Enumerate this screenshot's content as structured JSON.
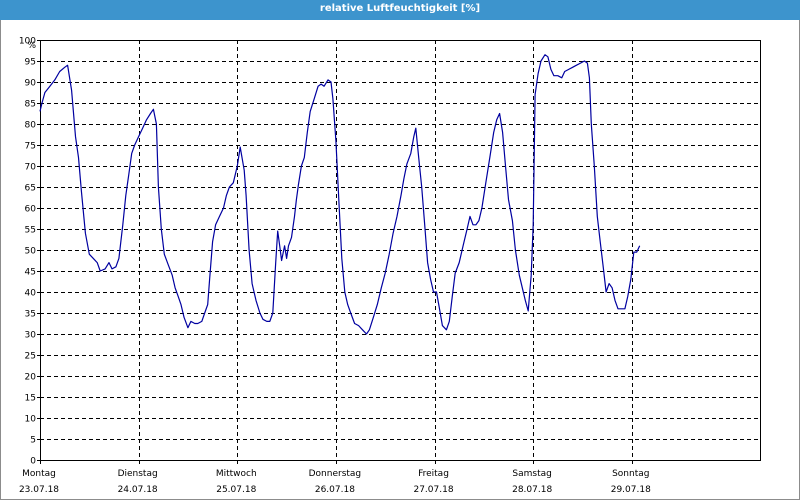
{
  "chart_data": {
    "type": "line",
    "title": "relative Luftfeuchtigkeit [%]",
    "ylabel": "%",
    "ylim": [
      0,
      100
    ],
    "yticks": [
      0,
      5,
      10,
      15,
      20,
      25,
      30,
      35,
      40,
      45,
      50,
      55,
      60,
      65,
      70,
      75,
      80,
      85,
      90,
      95,
      100
    ],
    "xlim": [
      0,
      7.3
    ],
    "grid": true,
    "legend": "none",
    "x_labels": [
      {
        "x": 0,
        "day": "Montag",
        "date": "23.07.18"
      },
      {
        "x": 1,
        "day": "Dienstag",
        "date": "24.07.18"
      },
      {
        "x": 2,
        "day": "Mittwoch",
        "date": "25.07.18"
      },
      {
        "x": 3,
        "day": "Donnerstag",
        "date": "26.07.18"
      },
      {
        "x": 4,
        "day": "Freitag",
        "date": "27.07.18"
      },
      {
        "x": 5,
        "day": "Samstag",
        "date": "28.07.18"
      },
      {
        "x": 6,
        "day": "Sonntag",
        "date": "29.07.18"
      }
    ],
    "series": [
      {
        "color": "#0000a0",
        "points": [
          [
            0.0,
            83
          ],
          [
            0.02,
            85
          ],
          [
            0.05,
            87.5
          ],
          [
            0.1,
            89
          ],
          [
            0.15,
            90.5
          ],
          [
            0.2,
            92.5
          ],
          [
            0.25,
            93.5
          ],
          [
            0.28,
            94
          ],
          [
            0.32,
            88
          ],
          [
            0.36,
            77
          ],
          [
            0.39,
            72
          ],
          [
            0.42,
            64
          ],
          [
            0.46,
            54
          ],
          [
            0.5,
            49
          ],
          [
            0.54,
            48
          ],
          [
            0.58,
            47
          ],
          [
            0.61,
            45
          ],
          [
            0.66,
            45.5
          ],
          [
            0.7,
            47
          ],
          [
            0.73,
            45.5
          ],
          [
            0.77,
            46
          ],
          [
            0.8,
            48
          ],
          [
            0.84,
            56
          ],
          [
            0.87,
            63
          ],
          [
            0.9,
            68
          ],
          [
            0.93,
            73
          ],
          [
            0.96,
            75
          ],
          [
            1.0,
            77
          ],
          [
            1.04,
            79
          ],
          [
            1.08,
            81
          ],
          [
            1.12,
            82.5
          ],
          [
            1.15,
            83.5
          ],
          [
            1.18,
            80
          ],
          [
            1.2,
            65
          ],
          [
            1.23,
            55
          ],
          [
            1.26,
            49
          ],
          [
            1.3,
            46.5
          ],
          [
            1.34,
            44
          ],
          [
            1.37,
            41
          ],
          [
            1.4,
            39
          ],
          [
            1.43,
            37
          ],
          [
            1.46,
            34
          ],
          [
            1.5,
            31.5
          ],
          [
            1.53,
            33
          ],
          [
            1.57,
            32.5
          ],
          [
            1.6,
            32.5
          ],
          [
            1.64,
            33
          ],
          [
            1.67,
            35
          ],
          [
            1.7,
            37
          ],
          [
            1.72,
            43
          ],
          [
            1.75,
            52
          ],
          [
            1.78,
            56
          ],
          [
            1.82,
            58
          ],
          [
            1.86,
            60
          ],
          [
            1.89,
            63
          ],
          [
            1.92,
            65
          ],
          [
            1.96,
            66
          ],
          [
            2.0,
            70
          ],
          [
            2.03,
            74.5
          ],
          [
            2.07,
            69
          ],
          [
            2.09,
            63
          ],
          [
            2.12,
            50
          ],
          [
            2.15,
            42
          ],
          [
            2.19,
            38
          ],
          [
            2.23,
            35
          ],
          [
            2.26,
            33.5
          ],
          [
            2.3,
            33
          ],
          [
            2.33,
            33
          ],
          [
            2.36,
            35
          ],
          [
            2.39,
            47
          ],
          [
            2.41,
            54.5
          ],
          [
            2.43,
            51
          ],
          [
            2.45,
            47.5
          ],
          [
            2.48,
            51
          ],
          [
            2.5,
            48
          ],
          [
            2.52,
            51
          ],
          [
            2.55,
            53
          ],
          [
            2.58,
            58
          ],
          [
            2.6,
            62
          ],
          [
            2.62,
            65.5
          ],
          [
            2.65,
            70
          ],
          [
            2.68,
            72
          ],
          [
            2.71,
            78
          ],
          [
            2.74,
            83
          ],
          [
            2.78,
            86
          ],
          [
            2.82,
            89
          ],
          [
            2.85,
            89.5
          ],
          [
            2.88,
            89
          ],
          [
            2.92,
            90.5
          ],
          [
            2.95,
            90
          ],
          [
            2.97,
            86
          ],
          [
            3.0,
            76
          ],
          [
            3.03,
            62
          ],
          [
            3.06,
            48
          ],
          [
            3.09,
            40
          ],
          [
            3.12,
            37
          ],
          [
            3.15,
            35
          ],
          [
            3.19,
            32.5
          ],
          [
            3.23,
            32
          ],
          [
            3.27,
            31
          ],
          [
            3.31,
            30
          ],
          [
            3.34,
            31
          ],
          [
            3.38,
            34
          ],
          [
            3.42,
            37
          ],
          [
            3.46,
            41
          ],
          [
            3.5,
            44.5
          ],
          [
            3.54,
            49
          ],
          [
            3.58,
            54
          ],
          [
            3.62,
            58
          ],
          [
            3.66,
            63
          ],
          [
            3.69,
            67
          ],
          [
            3.72,
            70.5
          ],
          [
            3.76,
            73
          ],
          [
            3.79,
            77
          ],
          [
            3.81,
            79
          ],
          [
            3.84,
            72
          ],
          [
            3.87,
            65
          ],
          [
            3.9,
            56
          ],
          [
            3.93,
            47
          ],
          [
            3.96,
            43
          ],
          [
            3.99,
            40
          ],
          [
            4.02,
            40
          ],
          [
            4.05,
            36
          ],
          [
            4.08,
            32
          ],
          [
            4.12,
            31
          ],
          [
            4.15,
            33
          ],
          [
            4.18,
            39
          ],
          [
            4.21,
            44.5
          ],
          [
            4.25,
            47
          ],
          [
            4.29,
            51
          ],
          [
            4.33,
            55
          ],
          [
            4.36,
            58
          ],
          [
            4.39,
            56
          ],
          [
            4.42,
            56
          ],
          [
            4.45,
            57
          ],
          [
            4.48,
            60
          ],
          [
            4.52,
            66
          ],
          [
            4.56,
            72
          ],
          [
            4.6,
            78
          ],
          [
            4.63,
            81
          ],
          [
            4.66,
            82.5
          ],
          [
            4.69,
            78
          ],
          [
            4.72,
            70
          ],
          [
            4.75,
            62
          ],
          [
            4.79,
            57
          ],
          [
            4.82,
            50
          ],
          [
            4.86,
            44
          ],
          [
            4.89,
            41
          ],
          [
            4.92,
            38
          ],
          [
            4.95,
            35.5
          ],
          [
            4.98,
            44
          ],
          [
            5.0,
            56
          ],
          [
            5.02,
            87
          ],
          [
            5.05,
            92
          ],
          [
            5.08,
            95
          ],
          [
            5.12,
            96.5
          ],
          [
            5.15,
            96
          ],
          [
            5.18,
            93
          ],
          [
            5.21,
            91.5
          ],
          [
            5.25,
            91.5
          ],
          [
            5.29,
            91
          ],
          [
            5.32,
            92.5
          ],
          [
            5.36,
            93
          ],
          [
            5.4,
            93.5
          ],
          [
            5.44,
            94
          ],
          [
            5.48,
            94.5
          ],
          [
            5.52,
            95
          ],
          [
            5.55,
            94.5
          ],
          [
            5.57,
            91
          ],
          [
            5.59,
            80
          ],
          [
            5.62,
            70
          ],
          [
            5.65,
            58
          ],
          [
            5.68,
            52
          ],
          [
            5.71,
            46
          ],
          [
            5.74,
            40
          ],
          [
            5.77,
            42
          ],
          [
            5.8,
            41
          ],
          [
            5.83,
            38
          ],
          [
            5.86,
            36
          ],
          [
            5.9,
            36
          ],
          [
            5.93,
            36
          ],
          [
            5.96,
            39
          ],
          [
            5.99,
            43
          ],
          [
            6.02,
            49.5
          ],
          [
            6.05,
            49.5
          ],
          [
            6.08,
            51
          ]
        ]
      }
    ]
  }
}
